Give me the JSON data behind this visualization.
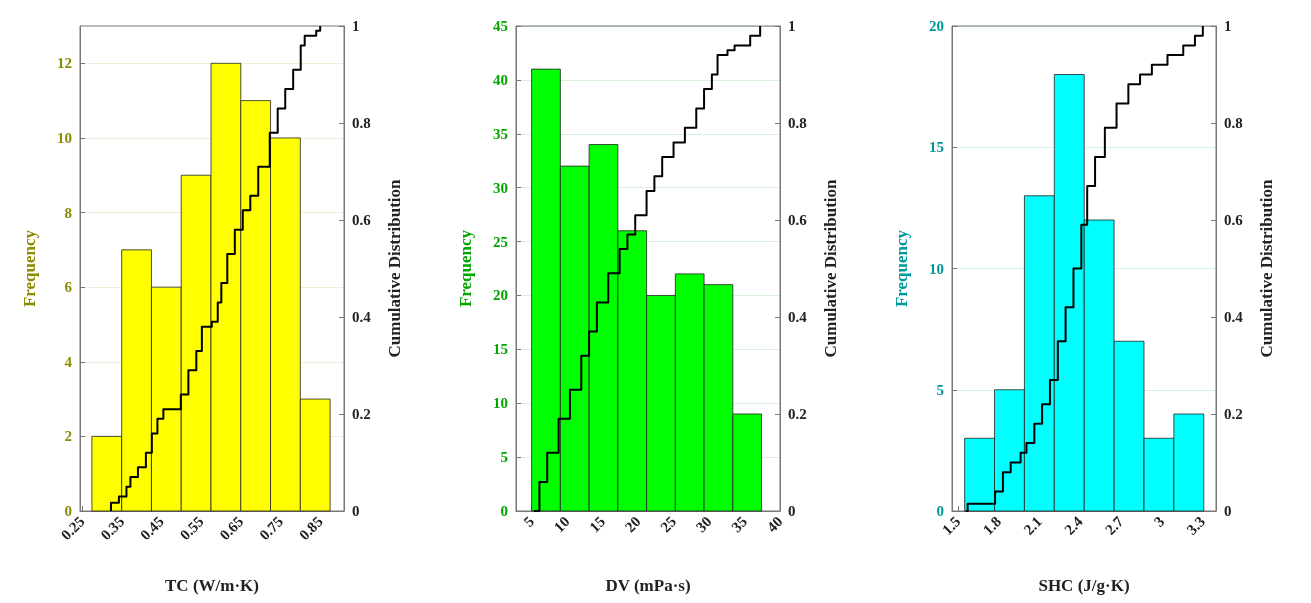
{
  "chart_data": [
    {
      "type": "histogram",
      "xlabel": "TC (W/m·K)",
      "ylabel": "Frequency",
      "y2label": "Cumulative Distribution",
      "bins": [
        0.275,
        0.35,
        0.425,
        0.5,
        0.575,
        0.65,
        0.725,
        0.8,
        0.875
      ],
      "xlim": [
        0.245,
        0.91
      ],
      "xticks": [
        0.25,
        0.35,
        0.45,
        0.55,
        0.65,
        0.75,
        0.85
      ],
      "ylim": [
        0,
        13
      ],
      "yticks": [
        0,
        2,
        4,
        6,
        8,
        10,
        12
      ],
      "y2lim": [
        0,
        1
      ],
      "y2ticks": [
        0,
        0.2,
        0.4,
        0.6,
        0.8,
        1
      ],
      "grid": "y",
      "series": [
        {
          "color": "#ffff00",
          "values": [
            2,
            7,
            6,
            9,
            12,
            11,
            10,
            3
          ]
        },
        {
          "type": "step",
          "axis": "y2",
          "color": "#000000",
          "x": [
            0.323,
            0.323,
            0.343,
            0.362,
            0.372,
            0.391,
            0.411,
            0.426,
            0.44,
            0.455,
            0.484,
            0.499,
            0.518,
            0.538,
            0.552,
            0.577,
            0.592,
            0.601,
            0.616,
            0.635,
            0.655,
            0.674,
            0.694,
            0.723,
            0.743,
            0.762,
            0.782,
            0.801,
            0.811,
            0.84,
            0.85
          ],
          "values": [
            0,
            0.017,
            0.03,
            0.05,
            0.07,
            0.09,
            0.12,
            0.16,
            0.19,
            0.21,
            0.21,
            0.24,
            0.29,
            0.33,
            0.38,
            0.39,
            0.43,
            0.47,
            0.53,
            0.58,
            0.62,
            0.65,
            0.71,
            0.78,
            0.83,
            0.87,
            0.91,
            0.96,
            0.98,
            0.99,
            1
          ]
        }
      ]
    },
    {
      "type": "histogram",
      "xlabel": "DV (mPa·s)",
      "ylabel": "Frequency",
      "y2label": "Cumulative Distribution",
      "bins": [
        5,
        9.05,
        13.1,
        17.15,
        21.2,
        25.25,
        29.3,
        33.35,
        37.4
      ],
      "xlim": [
        2.8,
        40
      ],
      "xticks": [
        5,
        10,
        15,
        20,
        25,
        30,
        35,
        40
      ],
      "ylim": [
        0,
        45
      ],
      "yticks": [
        0,
        5,
        10,
        15,
        20,
        25,
        30,
        35,
        40,
        45
      ],
      "y2lim": [
        0,
        1
      ],
      "y2ticks": [
        0,
        0.2,
        0.4,
        0.6,
        0.8,
        1
      ],
      "grid": "y",
      "series": [
        {
          "color": "#00ff00",
          "values": [
            41,
            32,
            34,
            26,
            20,
            22,
            21,
            9
          ]
        },
        {
          "type": "step",
          "axis": "y2",
          "color": "#000000",
          "x": [
            5.3,
            6.1,
            7.2,
            8.8,
            10.4,
            12.0,
            13.1,
            14.2,
            15.8,
            17.4,
            18.5,
            19.6,
            21.2,
            22.3,
            23.4,
            25.0,
            26.6,
            28.2,
            29.3,
            30.4,
            31.2,
            32.6,
            33.6,
            34.7,
            35.8,
            37.2
          ],
          "values": [
            0,
            0.06,
            0.12,
            0.19,
            0.25,
            0.32,
            0.37,
            0.43,
            0.49,
            0.54,
            0.57,
            0.61,
            0.66,
            0.69,
            0.73,
            0.76,
            0.79,
            0.83,
            0.87,
            0.9,
            0.94,
            0.95,
            0.96,
            0.96,
            0.98,
            1
          ]
        }
      ]
    },
    {
      "type": "histogram",
      "xlabel": "SHC (J/g·K)",
      "ylabel": "Frequency",
      "y2label": "Cumulative Distribution",
      "bins": [
        1.55,
        1.77,
        1.99,
        2.21,
        2.43,
        2.65,
        2.87,
        3.09,
        3.31
      ],
      "xlim": [
        1.457,
        3.4
      ],
      "xticks": [
        1.5,
        1.8,
        2.1,
        2.4,
        2.7,
        3,
        3.3
      ],
      "ylim": [
        0,
        20
      ],
      "yticks": [
        0,
        5,
        10,
        15,
        20
      ],
      "y2lim": [
        0,
        1
      ],
      "y2ticks": [
        0,
        0.2,
        0.4,
        0.6,
        0.8,
        1
      ],
      "grid": "y",
      "series": [
        {
          "color": "#00ffff",
          "values": [
            3,
            5,
            13,
            18,
            12,
            7,
            3,
            4
          ]
        },
        {
          "type": "step",
          "axis": "y2",
          "color": "#000000",
          "x": [
            1.558,
            1.572,
            1.731,
            1.774,
            1.832,
            1.889,
            1.962,
            2.005,
            2.063,
            2.12,
            2.178,
            2.236,
            2.293,
            2.351,
            2.409,
            2.452,
            2.51,
            2.582,
            2.668,
            2.755,
            2.841,
            2.928,
            3.043,
            3.159,
            3.245,
            3.303
          ],
          "values": [
            0,
            0.015,
            0.015,
            0.04,
            0.08,
            0.1,
            0.12,
            0.14,
            0.18,
            0.22,
            0.27,
            0.35,
            0.42,
            0.5,
            0.59,
            0.67,
            0.73,
            0.79,
            0.84,
            0.88,
            0.9,
            0.92,
            0.94,
            0.96,
            0.98,
            1
          ]
        }
      ]
    }
  ]
}
